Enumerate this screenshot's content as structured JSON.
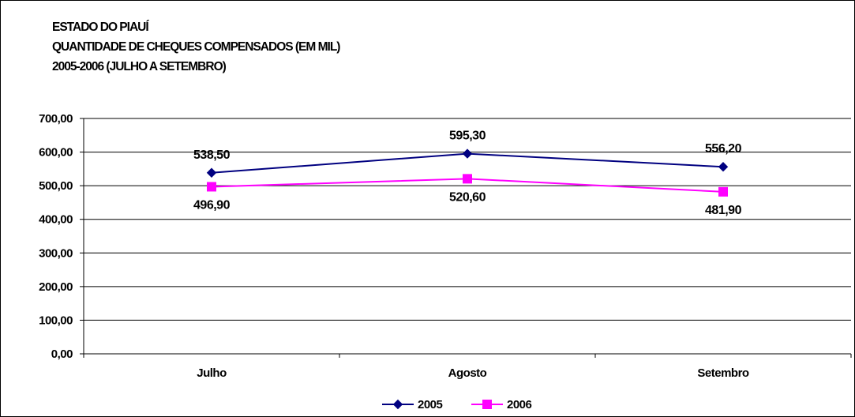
{
  "chart_data": {
    "type": "line",
    "title": "ESTADO DO PIAUÍ",
    "subtitle_lines": [
      "QUANTIDADE DE CHEQUES COMPENSADOS (EM MIL)",
      "2005-2006 (JULHO A SETEMBRO)"
    ],
    "categories": [
      "Julho",
      "Agosto",
      "Setembro"
    ],
    "series": [
      {
        "name": "2005",
        "values": [
          538.5,
          595.3,
          556.2
        ],
        "labels": [
          "538,50",
          "595,30",
          "556,20"
        ],
        "color": "#000080",
        "marker": "diamond"
      },
      {
        "name": "2006",
        "values": [
          496.9,
          520.6,
          481.9
        ],
        "labels": [
          "496,90",
          "520,60",
          "481,90"
        ],
        "color": "#FF00FF",
        "marker": "square"
      }
    ],
    "ylim": [
      0,
      700
    ],
    "yticks": [
      0,
      100,
      200,
      300,
      400,
      500,
      600,
      700
    ],
    "ytick_labels": [
      "0,00",
      "100,00",
      "200,00",
      "300,00",
      "400,00",
      "500,00",
      "600,00",
      "700,00"
    ],
    "grid": true,
    "legend_position": "bottom"
  }
}
